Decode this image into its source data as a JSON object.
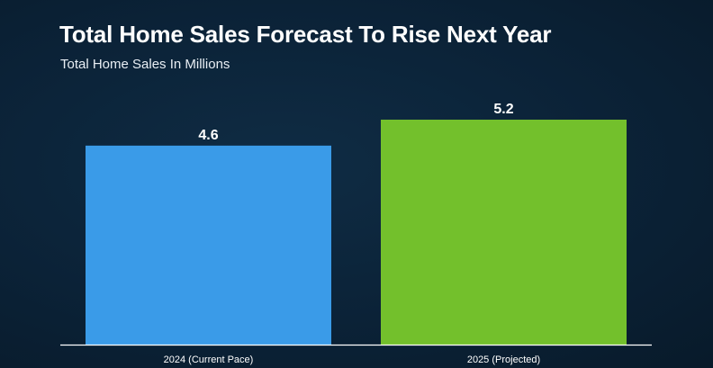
{
  "header": {
    "title": "Total Home Sales Forecast To Rise Next Year",
    "subtitle": "Total Home Sales In Millions"
  },
  "chart_data": {
    "type": "bar",
    "title": "Total Home Sales Forecast To Rise Next Year",
    "subtitle": "Total Home Sales In Millions",
    "categories": [
      "2024 (Current Pace)",
      "2025 (Projected)"
    ],
    "values": [
      4.6,
      5.2
    ],
    "value_labels": [
      "4.6",
      "5.2"
    ],
    "colors": [
      "#3a9be8",
      "#73c02c"
    ],
    "ylim": [
      0,
      5.2
    ],
    "grid": false,
    "legend": "none",
    "xlabel": "",
    "ylabel": ""
  },
  "colors": {
    "background": "#0b2237",
    "text": "#ffffff",
    "axis": "#ffffff"
  }
}
